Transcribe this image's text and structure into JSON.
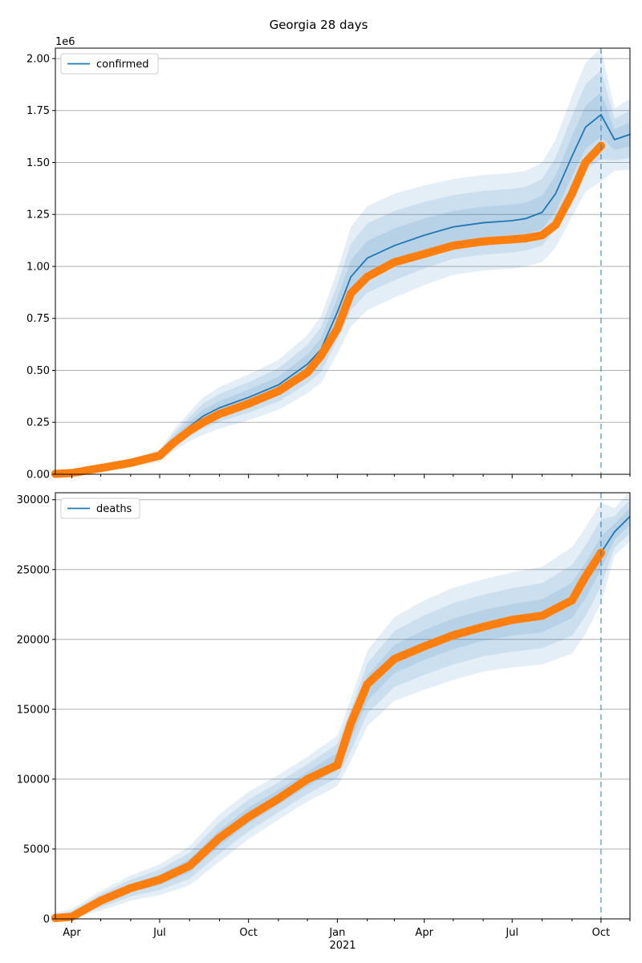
{
  "figure": {
    "title": "Georgia 28 days"
  },
  "chart_data": [
    {
      "type": "line",
      "legend": "confirmed",
      "legend_position": "top-left",
      "grid": "horizontal",
      "x_range": [
        "2020-03-15",
        "2021-10-31"
      ],
      "forecast_start": "2021-10-01",
      "ylim": [
        0,
        2.05
      ],
      "y_offset_label": "1e6",
      "yticks": [
        0,
        0.25,
        0.5,
        0.75,
        1.0,
        1.25,
        1.5,
        1.75,
        2.0
      ],
      "ytick_labels": [
        "0.00",
        "0.25",
        "0.50",
        "0.75",
        "1.00",
        "1.25",
        "1.50",
        "1.75",
        "2.00"
      ],
      "model": {
        "dates": [
          "2020-03-15",
          "2020-04-01",
          "2020-05-01",
          "2020-06-01",
          "2020-07-01",
          "2020-07-15",
          "2020-08-01",
          "2020-08-15",
          "2020-09-01",
          "2020-10-01",
          "2020-11-01",
          "2020-12-01",
          "2020-12-15",
          "2021-01-01",
          "2021-01-15",
          "2021-02-01",
          "2021-03-01",
          "2021-04-01",
          "2021-05-01",
          "2021-06-01",
          "2021-07-01",
          "2021-07-15",
          "2021-08-01",
          "2021-08-15",
          "2021-09-01",
          "2021-09-15",
          "2021-10-01",
          "2021-10-15",
          "2021-10-31"
        ],
        "values": [
          0.002,
          0.006,
          0.03,
          0.055,
          0.09,
          0.16,
          0.23,
          0.28,
          0.32,
          0.37,
          0.43,
          0.53,
          0.6,
          0.78,
          0.95,
          1.04,
          1.1,
          1.15,
          1.19,
          1.21,
          1.22,
          1.23,
          1.26,
          1.35,
          1.53,
          1.67,
          1.73,
          1.61,
          1.635
        ],
        "bands": [
          {
            "spread": [
              0.002,
              0.005,
              0.012,
              0.02,
              0.03,
              0.05,
              0.07,
              0.09,
              0.1,
              0.11,
              0.12,
              0.14,
              0.16,
              0.2,
              0.24,
              0.25,
              0.25,
              0.24,
              0.23,
              0.23,
              0.23,
              0.23,
              0.24,
              0.26,
              0.29,
              0.31,
              0.32,
              0.15,
              0.17
            ]
          },
          {
            "spread": [
              0.001,
              0.003,
              0.008,
              0.013,
              0.02,
              0.033,
              0.047,
              0.06,
              0.067,
              0.073,
              0.08,
              0.093,
              0.107,
              0.133,
              0.16,
              0.167,
              0.167,
              0.16,
              0.153,
              0.153,
              0.153,
              0.153,
              0.16,
              0.173,
              0.193,
              0.207,
              0.213,
              0.1,
              0.113
            ]
          },
          {
            "spread": [
              0.0005,
              0.0015,
              0.004,
              0.0065,
              0.01,
              0.017,
              0.023,
              0.03,
              0.033,
              0.037,
              0.04,
              0.047,
              0.053,
              0.067,
              0.08,
              0.083,
              0.083,
              0.08,
              0.077,
              0.077,
              0.077,
              0.077,
              0.08,
              0.087,
              0.097,
              0.103,
              0.107,
              0.05,
              0.057
            ]
          }
        ]
      },
      "observed": {
        "dates": [
          "2020-03-15",
          "2020-04-01",
          "2020-05-01",
          "2020-06-01",
          "2020-07-01",
          "2020-07-15",
          "2020-08-01",
          "2020-08-15",
          "2020-09-01",
          "2020-10-01",
          "2020-11-01",
          "2020-12-01",
          "2020-12-15",
          "2021-01-01",
          "2021-01-15",
          "2021-02-01",
          "2021-03-01",
          "2021-04-01",
          "2021-05-01",
          "2021-06-01",
          "2021-07-01",
          "2021-07-15",
          "2021-08-01",
          "2021-08-15",
          "2021-09-01",
          "2021-09-15",
          "2021-10-01"
        ],
        "values": [
          0.002,
          0.006,
          0.03,
          0.055,
          0.09,
          0.15,
          0.21,
          0.25,
          0.29,
          0.34,
          0.4,
          0.49,
          0.57,
          0.7,
          0.87,
          0.95,
          1.02,
          1.06,
          1.1,
          1.12,
          1.13,
          1.135,
          1.15,
          1.2,
          1.35,
          1.5,
          1.58
        ]
      }
    },
    {
      "type": "line",
      "legend": "deaths",
      "legend_position": "top-left",
      "grid": "horizontal",
      "x_range": [
        "2020-03-15",
        "2021-10-31"
      ],
      "forecast_start": "2021-10-01",
      "ylim": [
        0,
        30500
      ],
      "yticks": [
        0,
        5000,
        10000,
        15000,
        20000,
        25000,
        30000
      ],
      "ytick_labels": [
        "0",
        "5000",
        "10000",
        "15000",
        "20000",
        "25000",
        "30000"
      ],
      "model": {
        "dates": [
          "2020-03-15",
          "2020-04-01",
          "2020-05-01",
          "2020-06-01",
          "2020-07-01",
          "2020-08-01",
          "2020-09-01",
          "2020-10-01",
          "2020-11-01",
          "2020-12-01",
          "2021-01-01",
          "2021-01-15",
          "2021-02-01",
          "2021-03-01",
          "2021-04-01",
          "2021-05-01",
          "2021-06-01",
          "2021-07-01",
          "2021-08-01",
          "2021-09-01",
          "2021-09-15",
          "2021-10-01",
          "2021-10-15",
          "2021-10-31"
        ],
        "values": [
          60,
          200,
          1300,
          2200,
          2800,
          3800,
          5800,
          7400,
          8700,
          10000,
          11300,
          13500,
          16500,
          18600,
          19600,
          20400,
          21000,
          21400,
          21700,
          22800,
          24200,
          26200,
          27700,
          28800
        ],
        "bands": [
          {
            "spread": [
              400,
              500,
              700,
              900,
              1100,
              1400,
              1700,
              1700,
              1600,
              1600,
              1800,
              2200,
              2700,
              3000,
              3200,
              3300,
              3300,
              3400,
              3500,
              3800,
              3800,
              3600,
              1700,
              1800
            ]
          },
          {
            "spread": [
              250,
              330,
              470,
              600,
              730,
              930,
              1130,
              1130,
              1070,
              1070,
              1200,
              1470,
              1800,
              2000,
              2130,
              2200,
              2200,
              2270,
              2330,
              2530,
              2530,
              2400,
              1130,
              1200
            ]
          },
          {
            "spread": [
              130,
              170,
              230,
              300,
              370,
              470,
              570,
              570,
              530,
              530,
              600,
              730,
              900,
              1000,
              1070,
              1100,
              1100,
              1130,
              1170,
              1270,
              1270,
              1200,
              570,
              600
            ]
          }
        ]
      },
      "observed": {
        "dates": [
          "2020-03-15",
          "2020-04-01",
          "2020-05-01",
          "2020-06-01",
          "2020-07-01",
          "2020-08-01",
          "2020-09-01",
          "2020-10-01",
          "2020-11-01",
          "2020-12-01",
          "2021-01-01",
          "2021-01-15",
          "2021-02-01",
          "2021-03-01",
          "2021-04-01",
          "2021-05-01",
          "2021-06-01",
          "2021-07-01",
          "2021-08-01",
          "2021-09-01",
          "2021-09-15",
          "2021-10-01"
        ],
        "values": [
          60,
          150,
          1300,
          2200,
          2800,
          3800,
          5800,
          7300,
          8600,
          10000,
          11000,
          14000,
          16800,
          18600,
          19500,
          20300,
          20900,
          21400,
          21700,
          22800,
          24500,
          26200
        ]
      }
    }
  ],
  "x_axis": {
    "tick_labels": [
      "Apr",
      "Jul",
      "Oct",
      "Jan",
      "Apr",
      "Jul",
      "Oct"
    ],
    "tick_dates": [
      "2020-04-01",
      "2020-07-01",
      "2020-10-01",
      "2021-01-01",
      "2021-04-01",
      "2021-07-01",
      "2021-10-01"
    ],
    "year_label": "2021",
    "minor_tick_dates": [
      "2020-05-01",
      "2020-06-01",
      "2020-08-01",
      "2020-09-01",
      "2020-11-01",
      "2020-12-01",
      "2021-02-01",
      "2021-03-01",
      "2021-05-01",
      "2021-06-01",
      "2021-08-01",
      "2021-09-01",
      "2021-10-31"
    ]
  }
}
